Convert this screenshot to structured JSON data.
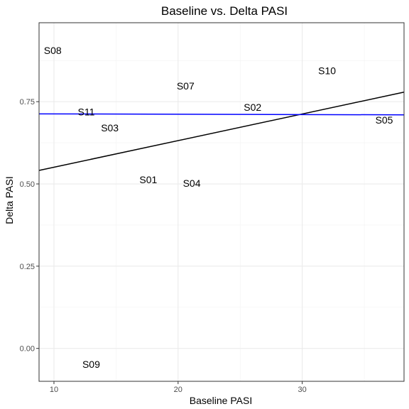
{
  "chart_data": {
    "type": "scatter",
    "title": "Baseline vs. Delta PASI",
    "xlabel": "Baseline PASI",
    "ylabel": "Delta PASI",
    "xlim": [
      8.8,
      38.2
    ],
    "ylim": [
      -0.1,
      0.99
    ],
    "x_ticks": [
      10,
      20,
      30
    ],
    "y_ticks": [
      0.0,
      0.25,
      0.5,
      0.75
    ],
    "y_tick_labels": [
      "0.00",
      "0.25",
      "0.50",
      "0.75"
    ],
    "grid": true,
    "points": [
      {
        "label": "S08",
        "x": 9.9,
        "y": 0.906
      },
      {
        "label": "S10",
        "x": 32.0,
        "y": 0.844
      },
      {
        "label": "S07",
        "x": 20.6,
        "y": 0.798
      },
      {
        "label": "S02",
        "x": 26.0,
        "y": 0.733
      },
      {
        "label": "S11",
        "x": 12.6,
        "y": 0.719
      },
      {
        "label": "S05",
        "x": 36.6,
        "y": 0.694
      },
      {
        "label": "S03",
        "x": 14.5,
        "y": 0.671
      },
      {
        "label": "S01",
        "x": 17.6,
        "y": 0.513
      },
      {
        "label": "S04",
        "x": 21.1,
        "y": 0.502
      },
      {
        "label": "S09",
        "x": 13.0,
        "y": -0.048
      }
    ],
    "lines": [
      {
        "color": "#000000",
        "x": [
          8.8,
          38.2
        ],
        "y": [
          0.541,
          0.779
        ]
      },
      {
        "color": "#0000ff",
        "x": [
          8.8,
          38.2
        ],
        "y": [
          0.713,
          0.71
        ]
      }
    ]
  }
}
